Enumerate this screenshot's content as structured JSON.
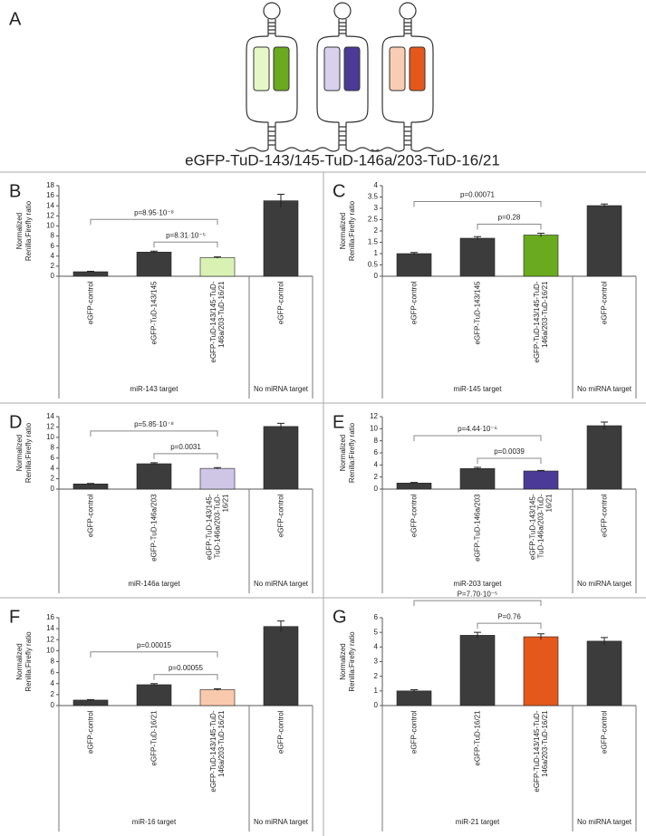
{
  "diagram": {
    "panel": "A",
    "caption": "eGFP-TuD-143/145-TuD-146a/203-TuD-16/21"
  },
  "chart_data": [
    {
      "type": "bar",
      "panel": "B",
      "ylabel": [
        "Normalized",
        "Renilla:Firefly ratio"
      ],
      "categories": [
        "eGFP-control",
        "eGFP-TuD-143/145",
        "eGFP-TuD-143/145-TuD-146a/203-TuD-16/21",
        "eGFP-control"
      ],
      "values": [
        0.9,
        4.8,
        3.7,
        15.0
      ],
      "errors": [
        0.1,
        0.2,
        0.15,
        1.3
      ],
      "colors": [
        "#3c3c3c",
        "#3c3c3c",
        "#d9f2b4",
        "#3c3c3c"
      ],
      "ylim": [
        0,
        18
      ],
      "yticks": [
        0,
        2,
        4,
        6,
        8,
        10,
        12,
        14,
        16,
        18
      ],
      "groups": [
        "miR-143 target",
        "No miRNA target"
      ],
      "annotations": [
        "p=8.95·10⁻⁸",
        "p=8.31·10⁻⁵"
      ]
    },
    {
      "type": "bar",
      "panel": "C",
      "ylabel": [
        "Normalized",
        "Renilla:Firefly ratio"
      ],
      "categories": [
        "eGFP-control",
        "eGFP-TuD-143/145",
        "eGFP-TuD-143/145-TuD-146a/203-TuD-16/21",
        "eGFP-control"
      ],
      "values": [
        1.0,
        1.68,
        1.82,
        3.12
      ],
      "errors": [
        0.05,
        0.07,
        0.08,
        0.07
      ],
      "colors": [
        "#3c3c3c",
        "#3c3c3c",
        "#6aaa1e",
        "#3c3c3c"
      ],
      "ylim": [
        0,
        4
      ],
      "yticks": [
        0,
        0.5,
        1,
        1.5,
        2,
        2.5,
        3,
        3.5,
        4
      ],
      "groups": [
        "miR-145 target",
        "No miRNA target"
      ],
      "annotations": [
        "p=0.00071",
        "p=0.28"
      ]
    },
    {
      "type": "bar",
      "panel": "D",
      "ylabel": [
        "Normalized",
        "Renilla:Firefly ratio"
      ],
      "categories": [
        "eGFP-control",
        "eGFP-TuD-146a/203",
        "eGFP-TuD-143/145-TuD-146a/203-TuD-16/21",
        "eGFP-control"
      ],
      "values": [
        1.0,
        4.9,
        4.0,
        12.1
      ],
      "errors": [
        0.1,
        0.2,
        0.15,
        0.6
      ],
      "colors": [
        "#3c3c3c",
        "#3c3c3c",
        "#cfc6e6",
        "#3c3c3c"
      ],
      "ylim": [
        0,
        14
      ],
      "yticks": [
        0,
        2,
        4,
        6,
        8,
        10,
        12,
        14
      ],
      "groups": [
        "miR-146a target",
        "No miRNA target"
      ],
      "annotations": [
        "p=5.85·10⁻⁸",
        "p=0.0031"
      ]
    },
    {
      "type": "bar",
      "panel": "E",
      "ylabel": [
        "Normalized",
        "Renilla:Firefly ratio"
      ],
      "categories": [
        "eGFP-control",
        "eGFP-TuD-146a/203",
        "eGFP-TuD-143/145-TuD-146a/203-TuD-16/21",
        "eGFP-control"
      ],
      "values": [
        1.0,
        3.4,
        3.0,
        10.5
      ],
      "errors": [
        0.1,
        0.2,
        0.1,
        0.6
      ],
      "colors": [
        "#3c3c3c",
        "#3c3c3c",
        "#4b3b96",
        "#3c3c3c"
      ],
      "ylim": [
        0,
        12
      ],
      "yticks": [
        0,
        2,
        4,
        6,
        8,
        10,
        12
      ],
      "groups": [
        "miR-203 target",
        "No miRNA target"
      ],
      "annotations": [
        "p=4.44·10⁻⁶",
        "p=0.0039"
      ]
    },
    {
      "type": "bar",
      "panel": "F",
      "ylabel": [
        "Normalized",
        "Renilla:Firefly ratio"
      ],
      "categories": [
        "eGFP-control",
        "eGFP-TuD-16/21",
        "eGFP-TuD-143/145-TuD-146a/203-TuD-16/21",
        "eGFP-control"
      ],
      "values": [
        1.0,
        3.8,
        2.9,
        14.4
      ],
      "errors": [
        0.1,
        0.2,
        0.15,
        1.0
      ],
      "colors": [
        "#3c3c3c",
        "#3c3c3c",
        "#f9c9ad",
        "#3c3c3c"
      ],
      "ylim": [
        0,
        16
      ],
      "yticks": [
        0,
        2,
        4,
        6,
        8,
        10,
        12,
        14,
        16
      ],
      "groups": [
        "miR-16 target",
        "No miRNA target"
      ],
      "annotations": [
        "p=0.00015",
        "p=0.00055"
      ]
    },
    {
      "type": "bar",
      "panel": "G",
      "ylabel": [
        "Normalized",
        "Renilla:Firefly ratio"
      ],
      "categories": [
        "eGFP-control",
        "eGFP-TuD-16/21",
        "eGFP-TuD-143/145-TuD-146a/203-TuD-16/21",
        "eGFP-control"
      ],
      "values": [
        1.0,
        4.8,
        4.7,
        4.4
      ],
      "errors": [
        0.08,
        0.2,
        0.2,
        0.25
      ],
      "colors": [
        "#3c3c3c",
        "#3c3c3c",
        "#e4581b",
        "#3c3c3c"
      ],
      "ylim": [
        0,
        6
      ],
      "yticks": [
        0,
        1,
        2,
        3,
        4,
        5,
        6
      ],
      "groups": [
        "miR-21 target",
        "No miRNA target"
      ],
      "annotations": [
        "P=7.70·10⁻⁵",
        "P=0.76"
      ]
    }
  ]
}
